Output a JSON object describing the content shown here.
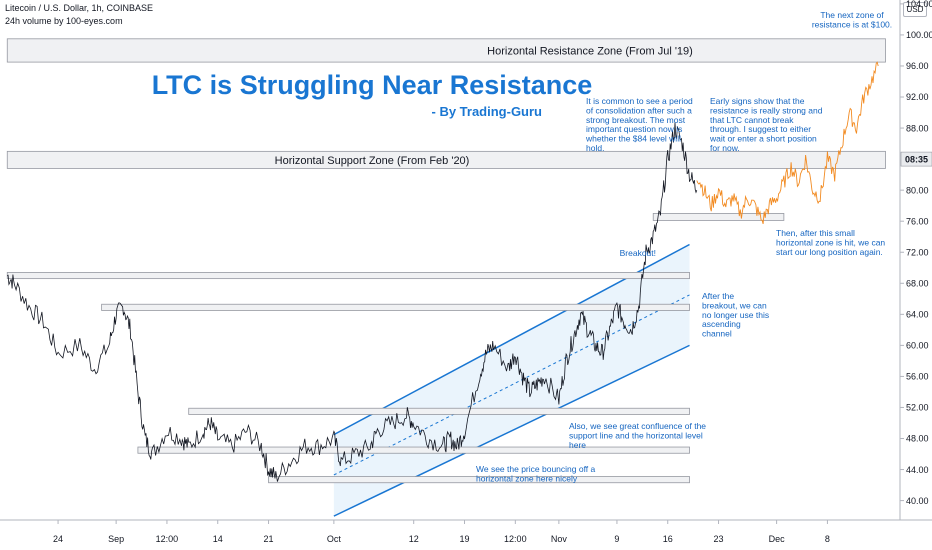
{
  "header": {
    "symbol_line": "Litecoin / U.S. Dollar, 1h, COINBASE",
    "volume_line": "24h volume by 100-eyes.com"
  },
  "currency_badge": "USD",
  "chart_data": {
    "type": "line",
    "title": "LTC is Struggling Near Resistance",
    "subtitle": "- By Trading-Guru",
    "y_ticks": [
      40,
      44,
      48,
      52,
      56,
      60,
      64,
      68,
      72,
      76,
      80,
      84,
      88,
      92,
      96,
      100,
      104
    ],
    "y_tick_labels": [
      "40.00",
      "44.00",
      "48.00",
      "52.00",
      "56.00",
      "60.00",
      "64.00",
      "68.00",
      "72.00",
      "76.00",
      "80.00",
      "",
      "88.00",
      "92.00",
      "96.00",
      "100.00",
      "104.00"
    ],
    "ylim": [
      37.5,
      104.5
    ],
    "current_price_label": "08:35",
    "current_price": 84.0,
    "x_tick_labels": [
      "24",
      "Sep",
      "12:00",
      "14",
      "21",
      "Oct",
      "12",
      "19",
      "12:00",
      "Nov",
      "9",
      "16",
      "23",
      "Dec",
      "8"
    ],
    "x_tick_days": [
      -8,
      0,
      7,
      14,
      21,
      30,
      41,
      48,
      55,
      61,
      69,
      76,
      83,
      91,
      98
    ],
    "price_series": {
      "name": "",
      "days": [
        -15,
        -14,
        -12,
        -10,
        -8,
        -5,
        -3,
        -1,
        0,
        1,
        2,
        3,
        4,
        5,
        7,
        9,
        10,
        12,
        13,
        14,
        16,
        18,
        20,
        21,
        22,
        24,
        26,
        28,
        30,
        31,
        33,
        35,
        36,
        38,
        40,
        41,
        43,
        45,
        46,
        47,
        48,
        50,
        51,
        52,
        54,
        55,
        56,
        57,
        58,
        59,
        61,
        62,
        63,
        64,
        65,
        66,
        67,
        68,
        69,
        70,
        71,
        72,
        73,
        74,
        75,
        76,
        77,
        78,
        79,
        80
      ],
      "values": [
        69,
        68,
        65,
        63,
        59,
        60,
        57,
        60,
        64,
        65,
        62,
        54,
        48,
        46,
        49,
        48,
        47,
        49,
        50,
        48,
        47,
        49,
        47,
        44,
        43,
        45,
        47,
        47,
        48,
        45,
        46,
        47,
        49,
        50,
        51,
        50,
        48,
        47,
        48,
        47,
        49,
        56,
        59,
        60,
        57,
        59,
        56,
        54,
        55,
        56,
        53,
        58,
        61,
        64,
        62,
        60,
        59,
        62,
        65,
        63,
        62,
        65,
        72,
        74,
        77,
        84,
        88,
        86,
        82,
        80
      ]
    },
    "projection_series": {
      "name": "",
      "days": [
        80,
        81,
        82,
        83,
        84,
        85,
        86,
        87,
        88,
        89,
        90,
        91,
        92,
        93,
        94,
        95,
        96,
        97,
        98,
        99,
        100,
        101,
        102,
        103,
        104,
        105
      ],
      "values": [
        82,
        80,
        78,
        80,
        78,
        79,
        77,
        79,
        78,
        76,
        78,
        79,
        81,
        83,
        81,
        84,
        80,
        79,
        84,
        82,
        86,
        90,
        88,
        92,
        94,
        96
      ]
    },
    "zones": [
      {
        "label": "Horizontal Resistance Zone (From Jul '19)",
        "from": 96.5,
        "to": 99.5,
        "start_day": -15,
        "end_day": 106
      },
      {
        "label": "Horizontal Support Zone (From Feb '20)",
        "from": 82.8,
        "to": 85.0,
        "start_day": -15,
        "end_day": 106
      },
      {
        "label": "",
        "from": 76.1,
        "to": 77.0,
        "start_day": 74,
        "end_day": 92
      },
      {
        "label": "",
        "from": 68.6,
        "to": 69.4,
        "start_day": -15,
        "end_day": 79
      },
      {
        "label": "",
        "from": 64.5,
        "to": 65.3,
        "start_day": -2,
        "end_day": 79
      },
      {
        "label": "",
        "from": 51.1,
        "to": 51.9,
        "start_day": 10,
        "end_day": 79
      },
      {
        "label": "",
        "from": 46.1,
        "to": 46.9,
        "start_day": 3,
        "end_day": 79
      },
      {
        "label": "",
        "from": 42.3,
        "to": 43.1,
        "start_day": 21,
        "end_day": 79
      }
    ],
    "channel": {
      "start_day": 30,
      "end_day": 79,
      "upper": [
        48.5,
        73.0
      ],
      "middle": [
        43.3,
        66.5
      ],
      "lower": [
        38.0,
        60.0
      ]
    },
    "annotations": [
      {
        "id": "next-zone",
        "lines": [
          "The next zone of",
          "resistance is at $100."
        ]
      },
      {
        "id": "consolidation",
        "lines": [
          "It is common to see a period",
          "of consolidation after such a",
          "strong breakout. The most",
          "important question now is",
          "whether the $84 level will",
          "hold."
        ]
      },
      {
        "id": "early-signs",
        "lines": [
          "Early signs show that the",
          "resistance is really strong and",
          "that LTC cannot break",
          "through. I suggest to either",
          "wait or enter a short position",
          "for now."
        ]
      },
      {
        "id": "long-position",
        "lines": [
          "Then, after this small",
          "horizontal zone is hit, we can",
          "start our long position again."
        ]
      },
      {
        "id": "breakout",
        "lines": [
          "Breakout!"
        ]
      },
      {
        "id": "after-breakout",
        "lines": [
          "After the",
          "breakout, we can",
          "no longer use this",
          "ascending",
          "channel"
        ]
      },
      {
        "id": "confluence",
        "lines": [
          "Also, we see great confluence of the",
          "support line and the horizontal level",
          "here"
        ]
      },
      {
        "id": "bouncing",
        "lines": [
          "We see the price bouncing off a",
          "horizontal zone here nicely"
        ]
      }
    ],
    "colors": {
      "price": "#131722",
      "projection": "#f28b22",
      "accent": "#1976d2",
      "zone_fill": "#f0f1f3",
      "zone_border": "#9598a1",
      "channel_fill": "#e3f0fb"
    },
    "grid": false
  }
}
